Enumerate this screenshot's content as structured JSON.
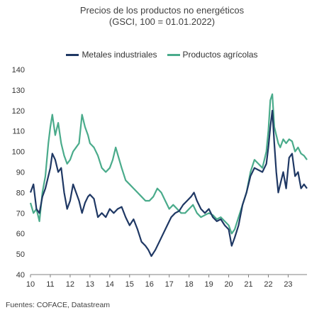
{
  "chart_data": {
    "type": "line",
    "title": "Precios de los productos no energéticos",
    "subtitle": "(GSCI, 100 = 01.01.2022)",
    "source": "Fuentes: COFACE, Datastream",
    "xlabel": "",
    "ylabel": "",
    "ylim": [
      40,
      140
    ],
    "xlim": [
      2010,
      2023.95
    ],
    "y_ticks": [
      "40",
      "50",
      "60",
      "70",
      "80",
      "90",
      "100",
      "110",
      "120",
      "130",
      "140"
    ],
    "x_ticks": [
      "10",
      "11",
      "12",
      "13",
      "14",
      "15",
      "16",
      "17",
      "18",
      "19",
      "20",
      "21",
      "22",
      "23"
    ],
    "grid": false,
    "legend_position": "top-center",
    "series": [
      {
        "name": "Metales industriales",
        "color": "#1f3864",
        "x": [
          2010.0,
          2010.15,
          2010.3,
          2010.45,
          2010.6,
          2010.75,
          2010.9,
          2011.0,
          2011.1,
          2011.25,
          2011.4,
          2011.55,
          2011.7,
          2011.85,
          2012.0,
          2012.15,
          2012.3,
          2012.45,
          2012.6,
          2012.75,
          2012.9,
          2013.0,
          2013.2,
          2013.4,
          2013.6,
          2013.8,
          2014.0,
          2014.2,
          2014.4,
          2014.6,
          2014.8,
          2015.0,
          2015.2,
          2015.4,
          2015.6,
          2015.8,
          2015.95,
          2016.1,
          2016.3,
          2016.5,
          2016.7,
          2016.9,
          2017.1,
          2017.3,
          2017.5,
          2017.7,
          2017.9,
          2018.1,
          2018.25,
          2018.4,
          2018.6,
          2018.8,
          2019.0,
          2019.2,
          2019.4,
          2019.6,
          2019.8,
          2020.0,
          2020.15,
          2020.3,
          2020.5,
          2020.7,
          2020.9,
          2021.1,
          2021.3,
          2021.5,
          2021.7,
          2021.9,
          2022.0,
          2022.1,
          2022.2,
          2022.3,
          2022.4,
          2022.5,
          2022.6,
          2022.75,
          2022.9,
          2023.05,
          2023.2,
          2023.35,
          2023.5,
          2023.65,
          2023.8,
          2023.95
        ],
        "values": [
          80,
          84,
          72,
          70,
          78,
          82,
          88,
          92,
          99,
          96,
          90,
          92,
          80,
          72,
          76,
          84,
          80,
          76,
          70,
          75,
          78,
          79,
          77,
          68,
          70,
          68,
          72,
          70,
          72,
          73,
          68,
          64,
          67,
          62,
          56,
          54,
          52,
          49,
          52,
          56,
          60,
          64,
          68,
          70,
          71,
          74,
          76,
          78,
          80,
          76,
          72,
          70,
          72,
          68,
          66,
          67,
          64,
          62,
          54,
          58,
          64,
          74,
          80,
          88,
          92,
          91,
          90,
          94,
          102,
          112,
          120,
          104,
          90,
          80,
          84,
          90,
          82,
          97,
          99,
          88,
          90,
          82,
          84,
          82
        ]
      },
      {
        "name": "Productos agrícolas",
        "color": "#4aab8b",
        "x": [
          2010.0,
          2010.15,
          2010.3,
          2010.45,
          2010.6,
          2010.75,
          2010.9,
          2011.0,
          2011.1,
          2011.25,
          2011.4,
          2011.55,
          2011.7,
          2011.85,
          2012.0,
          2012.15,
          2012.3,
          2012.45,
          2012.6,
          2012.75,
          2012.9,
          2013.0,
          2013.2,
          2013.4,
          2013.6,
          2013.8,
          2014.0,
          2014.15,
          2014.3,
          2014.45,
          2014.6,
          2014.8,
          2015.0,
          2015.2,
          2015.4,
          2015.6,
          2015.8,
          2016.0,
          2016.2,
          2016.4,
          2016.6,
          2016.8,
          2017.0,
          2017.2,
          2017.4,
          2017.6,
          2017.8,
          2018.0,
          2018.2,
          2018.4,
          2018.6,
          2018.8,
          2019.0,
          2019.2,
          2019.4,
          2019.6,
          2019.8,
          2020.0,
          2020.15,
          2020.3,
          2020.5,
          2020.7,
          2020.9,
          2021.1,
          2021.3,
          2021.5,
          2021.7,
          2021.9,
          2022.0,
          2022.1,
          2022.2,
          2022.3,
          2022.4,
          2022.5,
          2022.6,
          2022.75,
          2022.9,
          2023.05,
          2023.2,
          2023.35,
          2023.5,
          2023.65,
          2023.8,
          2023.95
        ],
        "values": [
          75,
          70,
          72,
          66,
          80,
          88,
          104,
          112,
          118,
          108,
          114,
          104,
          98,
          94,
          96,
          100,
          102,
          104,
          118,
          112,
          108,
          104,
          102,
          98,
          92,
          90,
          92,
          96,
          102,
          97,
          92,
          86,
          84,
          82,
          80,
          78,
          76,
          76,
          78,
          82,
          80,
          76,
          72,
          74,
          72,
          70,
          70,
          72,
          74,
          70,
          68,
          69,
          70,
          69,
          67,
          68,
          66,
          64,
          60,
          62,
          68,
          74,
          80,
          90,
          96,
          94,
          92,
          100,
          110,
          125,
          128,
          112,
          108,
          104,
          102,
          106,
          104,
          106,
          105,
          100,
          102,
          99,
          98,
          96
        ]
      }
    ]
  }
}
